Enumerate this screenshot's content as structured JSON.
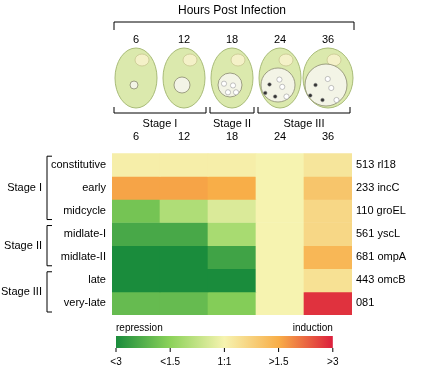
{
  "chart_data": {
    "type": "heatmap",
    "title": "Hours Post Infection",
    "categories": [
      "6",
      "12",
      "18",
      "24",
      "36"
    ],
    "stages": [
      {
        "name": "Stage I",
        "hours": [
          "6",
          "12"
        ],
        "rows": [
          {
            "label": "constitutive",
            "gene": "513 rl18",
            "cells": [
              0.1,
              0.1,
              0.1,
              0,
              0.3
            ]
          },
          {
            "label": "early",
            "gene": "233 incC",
            "cells": [
              1.6,
              1.6,
              1.5,
              0,
              1.0
            ]
          },
          {
            "label": "midcycle",
            "gene": "110 groEL",
            "cells": [
              -1.8,
              -1.0,
              -0.4,
              0,
              0.6
            ]
          }
        ]
      },
      {
        "name": "Stage II",
        "hours": [
          "18"
        ],
        "rows": [
          {
            "label": "midlate-I",
            "gene": "561 yscL",
            "cells": [
              -2.4,
              -2.4,
              -1.1,
              0,
              0.6
            ]
          },
          {
            "label": "midlate-II",
            "gene": "681 ompA",
            "cells": [
              -3,
              -3,
              -2.5,
              0,
              1.3
            ]
          }
        ]
      },
      {
        "name": "Stage III",
        "hours": [
          "24",
          "36"
        ],
        "rows": [
          {
            "label": "late",
            "gene": "443 omcB",
            "cells": [
              -3,
              -3,
              -3,
              0,
              0.4
            ]
          },
          {
            "label": "very-late",
            "gene": "081",
            "cells": [
              -2,
              -2,
              -1.6,
              0,
              2.8
            ]
          }
        ]
      }
    ],
    "colorbar": {
      "range": [
        -3,
        3
      ],
      "ticks": [
        {
          "value": -3,
          "label": "<3"
        },
        {
          "value": -1.5,
          "label": "<1.5"
        },
        {
          "value": 0,
          "label": "1:1"
        },
        {
          "value": 1.5,
          "label": ">1.5"
        },
        {
          "value": 3,
          "label": ">3"
        }
      ],
      "low_label": "repression",
      "high_label": "induction",
      "colors": [
        "#1a8c3c",
        "#8cd25a",
        "#f6f3b0",
        "#f8ae48",
        "#dc1f3c"
      ]
    },
    "grid": false
  }
}
